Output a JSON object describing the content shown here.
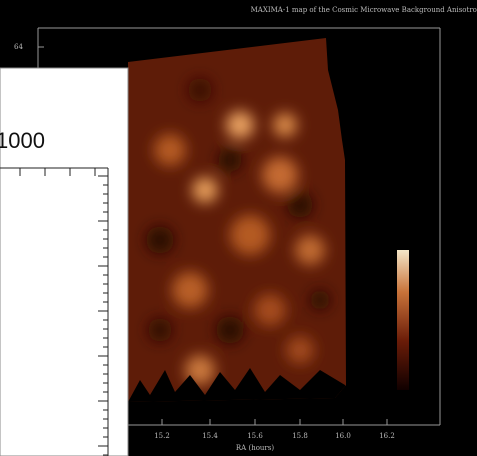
{
  "title": "MAXIMA-1 map of the Cosmic Microwave Background Anisotropy",
  "map": {
    "y_tick": "64",
    "x_ticks": [
      "15.2",
      "15.4",
      "15.6",
      "15.8",
      "16.0",
      "16.2"
    ],
    "x_label": "RA (hours)"
  },
  "inset": {
    "label": "1000"
  }
}
